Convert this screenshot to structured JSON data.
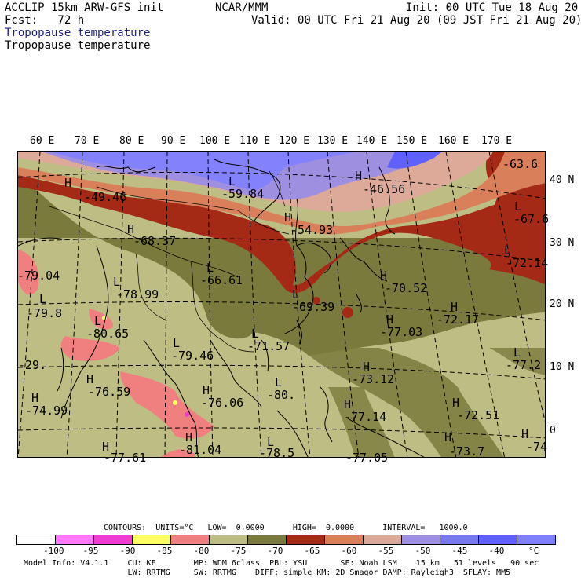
{
  "header": {
    "left_line1": "ACCLIP 15km ARW-GFS init",
    "left_line2": "Fcst:   72 h",
    "center": "NCAR/MMM",
    "init": "Init: 00 UTC Tue 18 Aug 20",
    "valid": "Valid: 00 UTC Fri 21 Aug 20 (09 JST Fri 21 Aug 20)",
    "field_line1": "Tropopause temperature",
    "field_line2": "Tropopause temperature"
  },
  "map": {
    "lon_labels": [
      "60 E",
      "70 E",
      "80 E",
      "90 E",
      "100 E",
      "110 E",
      "120 E",
      "130 E",
      "140 E",
      "150 E",
      "160 E",
      "170 E"
    ],
    "lat_labels": [
      "40 N",
      "30 N",
      "20 N",
      "10 N",
      "0"
    ],
    "labels": [
      {
        "text": "H",
        "name": "label-h-1"
      },
      {
        "text": "-49.46",
        "name": "label-value-1"
      },
      {
        "text": "L",
        "name": "label-l-1"
      },
      {
        "text": "-59.84",
        "name": "label-value-2"
      },
      {
        "text": "H",
        "name": "label-h-2"
      },
      {
        "text": "-46.56",
        "name": "label-value-3"
      },
      {
        "text": "-63.6",
        "name": "label-value-4"
      },
      {
        "text": "L",
        "name": "label-l-2"
      },
      {
        "text": "-67.6",
        "name": "label-value-5"
      },
      {
        "text": "H",
        "name": "label-h-3"
      },
      {
        "text": "-54.93",
        "name": "label-value-6"
      },
      {
        "text": "H",
        "name": "label-h-4"
      },
      {
        "text": "-68.37",
        "name": "label-value-7"
      },
      {
        "text": "L",
        "name": "label-l-3"
      },
      {
        "text": "-72.14",
        "name": "label-value-8"
      },
      {
        "text": "L",
        "name": "label-l-4"
      },
      {
        "text": "-66.61",
        "name": "label-value-9"
      },
      {
        "text": "H",
        "name": "label-h-5"
      },
      {
        "text": "-70.52",
        "name": "label-value-10"
      },
      {
        "text": "-79.04",
        "name": "label-value-11"
      },
      {
        "text": "L",
        "name": "label-l-5"
      },
      {
        "text": "-78.99",
        "name": "label-value-12"
      },
      {
        "text": "L",
        "name": "label-l-6"
      },
      {
        "text": "-69.39",
        "name": "label-value-13"
      },
      {
        "text": "H",
        "name": "label-h-6"
      },
      {
        "text": "-72.17",
        "name": "label-value-14"
      },
      {
        "text": "L",
        "name": "label-l-7"
      },
      {
        "text": "-79.8",
        "name": "label-value-15"
      },
      {
        "text": "L",
        "name": "label-l-8"
      },
      {
        "text": "-80.65",
        "name": "label-value-16"
      },
      {
        "text": "H",
        "name": "label-h-7"
      },
      {
        "text": "-77.03",
        "name": "label-value-17"
      },
      {
        "text": "L",
        "name": "label-l-9"
      },
      {
        "text": "-71.57",
        "name": "label-value-18"
      },
      {
        "text": "L",
        "name": "label-l-10"
      },
      {
        "text": "-79.46",
        "name": "label-value-19"
      },
      {
        "text": "L",
        "name": "label-l-11"
      },
      {
        "text": "-77.2",
        "name": "label-value-20"
      },
      {
        "text": "-29.",
        "name": "label-value-21"
      },
      {
        "text": "H",
        "name": "label-h-8"
      },
      {
        "text": "-73.12",
        "name": "label-value-22"
      },
      {
        "text": "H",
        "name": "label-h-9"
      },
      {
        "text": "-76.59",
        "name": "label-value-23"
      },
      {
        "text": "L",
        "name": "label-l-12"
      },
      {
        "text": "H",
        "name": "label-h-10"
      },
      {
        "text": "-76.06",
        "name": "label-value-24"
      },
      {
        "text": "-80.",
        "name": "label-value-25"
      },
      {
        "text": "H",
        "name": "label-h-11"
      },
      {
        "text": "-74.99",
        "name": "label-value-26"
      },
      {
        "text": "H",
        "name": "label-h-12"
      },
      {
        "text": "-77.14",
        "name": "label-value-27"
      },
      {
        "text": "H",
        "name": "label-h-13"
      },
      {
        "text": "-72.51",
        "name": "label-value-28"
      },
      {
        "text": "H",
        "name": "label-h-14"
      },
      {
        "text": "-81.04",
        "name": "label-value-29"
      },
      {
        "text": "H",
        "name": "label-h-15"
      },
      {
        "text": "-73.7",
        "name": "label-value-30"
      },
      {
        "text": "H",
        "name": "label-h-16"
      },
      {
        "text": "-74",
        "name": "label-value-31"
      },
      {
        "text": "H",
        "name": "label-h-17"
      },
      {
        "text": "-77.61",
        "name": "label-value-32"
      },
      {
        "text": "L",
        "name": "label-l-13"
      },
      {
        "text": "-78.5",
        "name": "label-value-33"
      },
      {
        "text": "-77.05",
        "name": "label-value-34"
      }
    ]
  },
  "footer": {
    "contours": "CONTOURS:  UNITS=°C   LOW=  0.0000      HIGH=  0.0000      INTERVAL=   1000.0",
    "model_line1": "Model Info: V4.1.1    CU: KF        MP: WDM 6class  PBL: YSU       SF: Noah LSM    15 km   51 levels   90 sec",
    "model_line2": "                      LW: RRTMG     SW: RRTMG    DIFF: simple KM: 2D Smagor DAMP: Rayleigh3  SFLAY: MM5"
  },
  "colorbar": {
    "colors": [
      "#ffffff",
      "#ff78ff",
      "#f03cd2",
      "#ffff64",
      "#f08080",
      "#bdbd84",
      "#7a7a3c",
      "#a52a16",
      "#d9805a",
      "#ddaa99",
      "#9f8fe0",
      "#7878f0",
      "#6060ff",
      "#8080ff"
    ],
    "labels": [
      "-100",
      "-95",
      "-90",
      "-85",
      "-80",
      "-75",
      "-70",
      "-65",
      "-60",
      "-55",
      "-50",
      "-45",
      "-40",
      "°C"
    ]
  }
}
